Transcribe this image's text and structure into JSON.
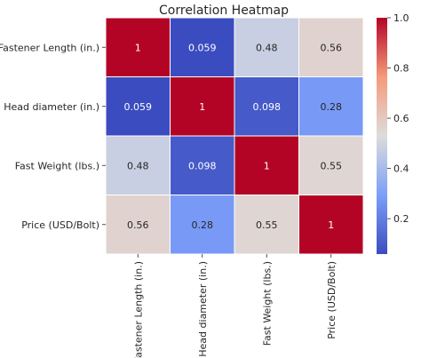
{
  "chart_data": {
    "type": "heatmap",
    "title": "Correlation Heatmap",
    "row_labels": [
      "Fastener Length (in.)",
      "Head diameter (in.)",
      "Fast Weight (lbs.)",
      "Price (USD/Bolt)"
    ],
    "col_labels": [
      "Fastener Length (in.)",
      "Head diameter (in.)",
      "Fast Weight (lbs.)",
      "Price (USD/Bolt)"
    ],
    "values": [
      [
        1,
        0.059,
        0.48,
        0.56
      ],
      [
        0.059,
        1,
        0.098,
        0.28
      ],
      [
        0.48,
        0.098,
        1,
        0.55
      ],
      [
        0.56,
        0.28,
        0.55,
        1
      ]
    ],
    "annotations": [
      [
        "1",
        "0.059",
        "0.48",
        "0.56"
      ],
      [
        "0.059",
        "1",
        "0.098",
        "0.28"
      ],
      [
        "0.48",
        "0.098",
        "1",
        "0.55"
      ],
      [
        "0.56",
        "0.28",
        "0.55",
        "1"
      ]
    ],
    "colormap": "coolwarm",
    "vmin": 0.059,
    "vmax": 1.0,
    "colorbar_ticks": [
      "0.2",
      "0.4",
      "0.6",
      "0.8",
      "1.0"
    ],
    "colorbar_tick_values": [
      0.2,
      0.4,
      0.6,
      0.8,
      1.0
    ],
    "annot_light_color": "#ffffff",
    "annot_dark_color": "#262626"
  }
}
